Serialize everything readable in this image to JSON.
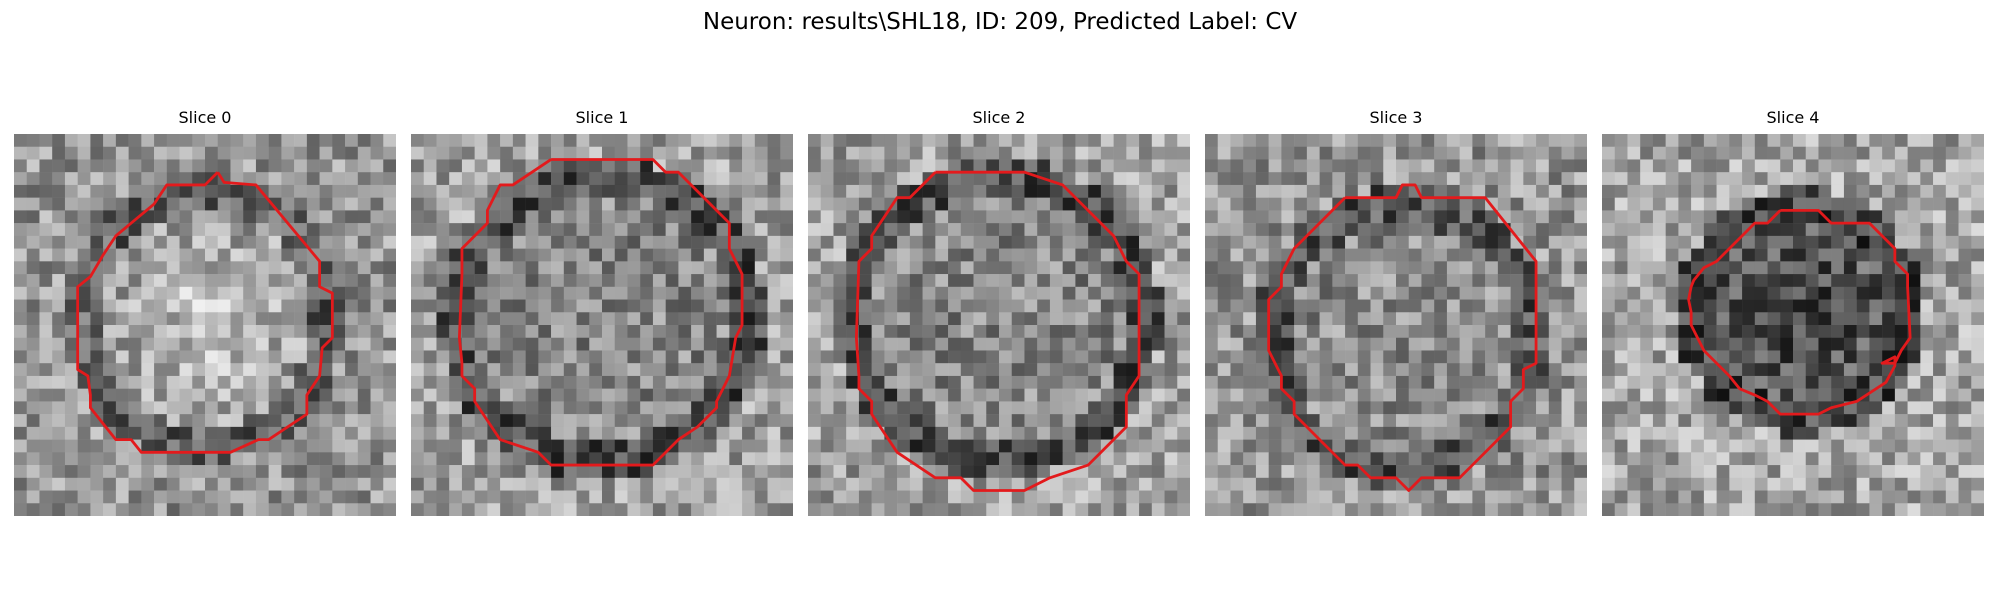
{
  "figure": {
    "title": "Neuron: results\\SHL18, ID: 209, Predicted Label: CV"
  },
  "colors": {
    "contour": "#e31a1c",
    "background": "#ffffff"
  },
  "slices": [
    {
      "label": "Slice 0",
      "seed": 11,
      "shape": "soma-bright-center"
    },
    {
      "label": "Slice 1",
      "seed": 23,
      "shape": "soma-large"
    },
    {
      "label": "Slice 2",
      "seed": 37,
      "shape": "soma-large"
    },
    {
      "label": "Slice 3",
      "seed": 51,
      "shape": "soma-medium"
    },
    {
      "label": "Slice 4",
      "seed": 67,
      "shape": "soma-small-dark"
    }
  ]
}
